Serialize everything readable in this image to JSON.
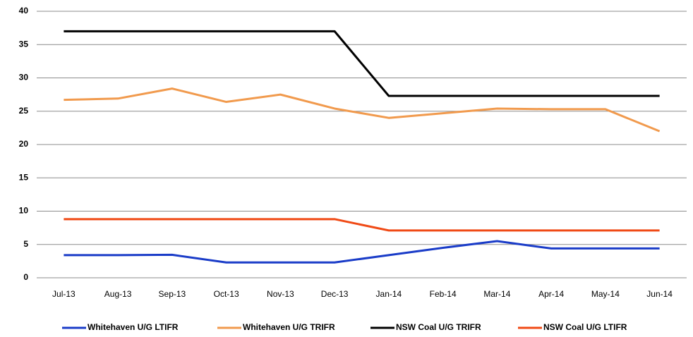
{
  "chart_data": {
    "type": "line",
    "categories": [
      "Jul-13",
      "Aug-13",
      "Sep-13",
      "Oct-13",
      "Nov-13",
      "Dec-13",
      "Jan-14",
      "Feb-14",
      "Mar-14",
      "Apr-14",
      "May-14",
      "Jun-14"
    ],
    "series": [
      {
        "name": "Whitehaven U/G LTIFR",
        "color": "#1a3cc8",
        "values": [
          3.4,
          3.4,
          3.45,
          2.3,
          2.3,
          2.3,
          3.4,
          4.5,
          5.5,
          4.4,
          4.4,
          4.4
        ]
      },
      {
        "name": "Whitehaven U/G TRIFR",
        "color": "#f19a4d",
        "values": [
          26.7,
          26.9,
          28.4,
          26.4,
          27.5,
          25.4,
          24.0,
          24.7,
          25.4,
          25.3,
          25.3,
          22.0
        ]
      },
      {
        "name": "NSW Coal U/G TRIFR",
        "color": "#000000",
        "values": [
          37,
          37,
          37,
          37,
          37,
          37,
          27.3,
          27.3,
          27.3,
          27.3,
          27.3,
          27.3
        ]
      },
      {
        "name": "NSW Coal U/G LTIFR",
        "color": "#f04a16",
        "values": [
          8.8,
          8.8,
          8.8,
          8.8,
          8.8,
          8.8,
          7.1,
          7.1,
          7.1,
          7.1,
          7.1,
          7.1
        ]
      }
    ],
    "ylim": [
      0,
      40
    ],
    "yticks": [
      0,
      5,
      10,
      15,
      20,
      25,
      30,
      35,
      40
    ],
    "grid": true,
    "legend": "bottom"
  }
}
